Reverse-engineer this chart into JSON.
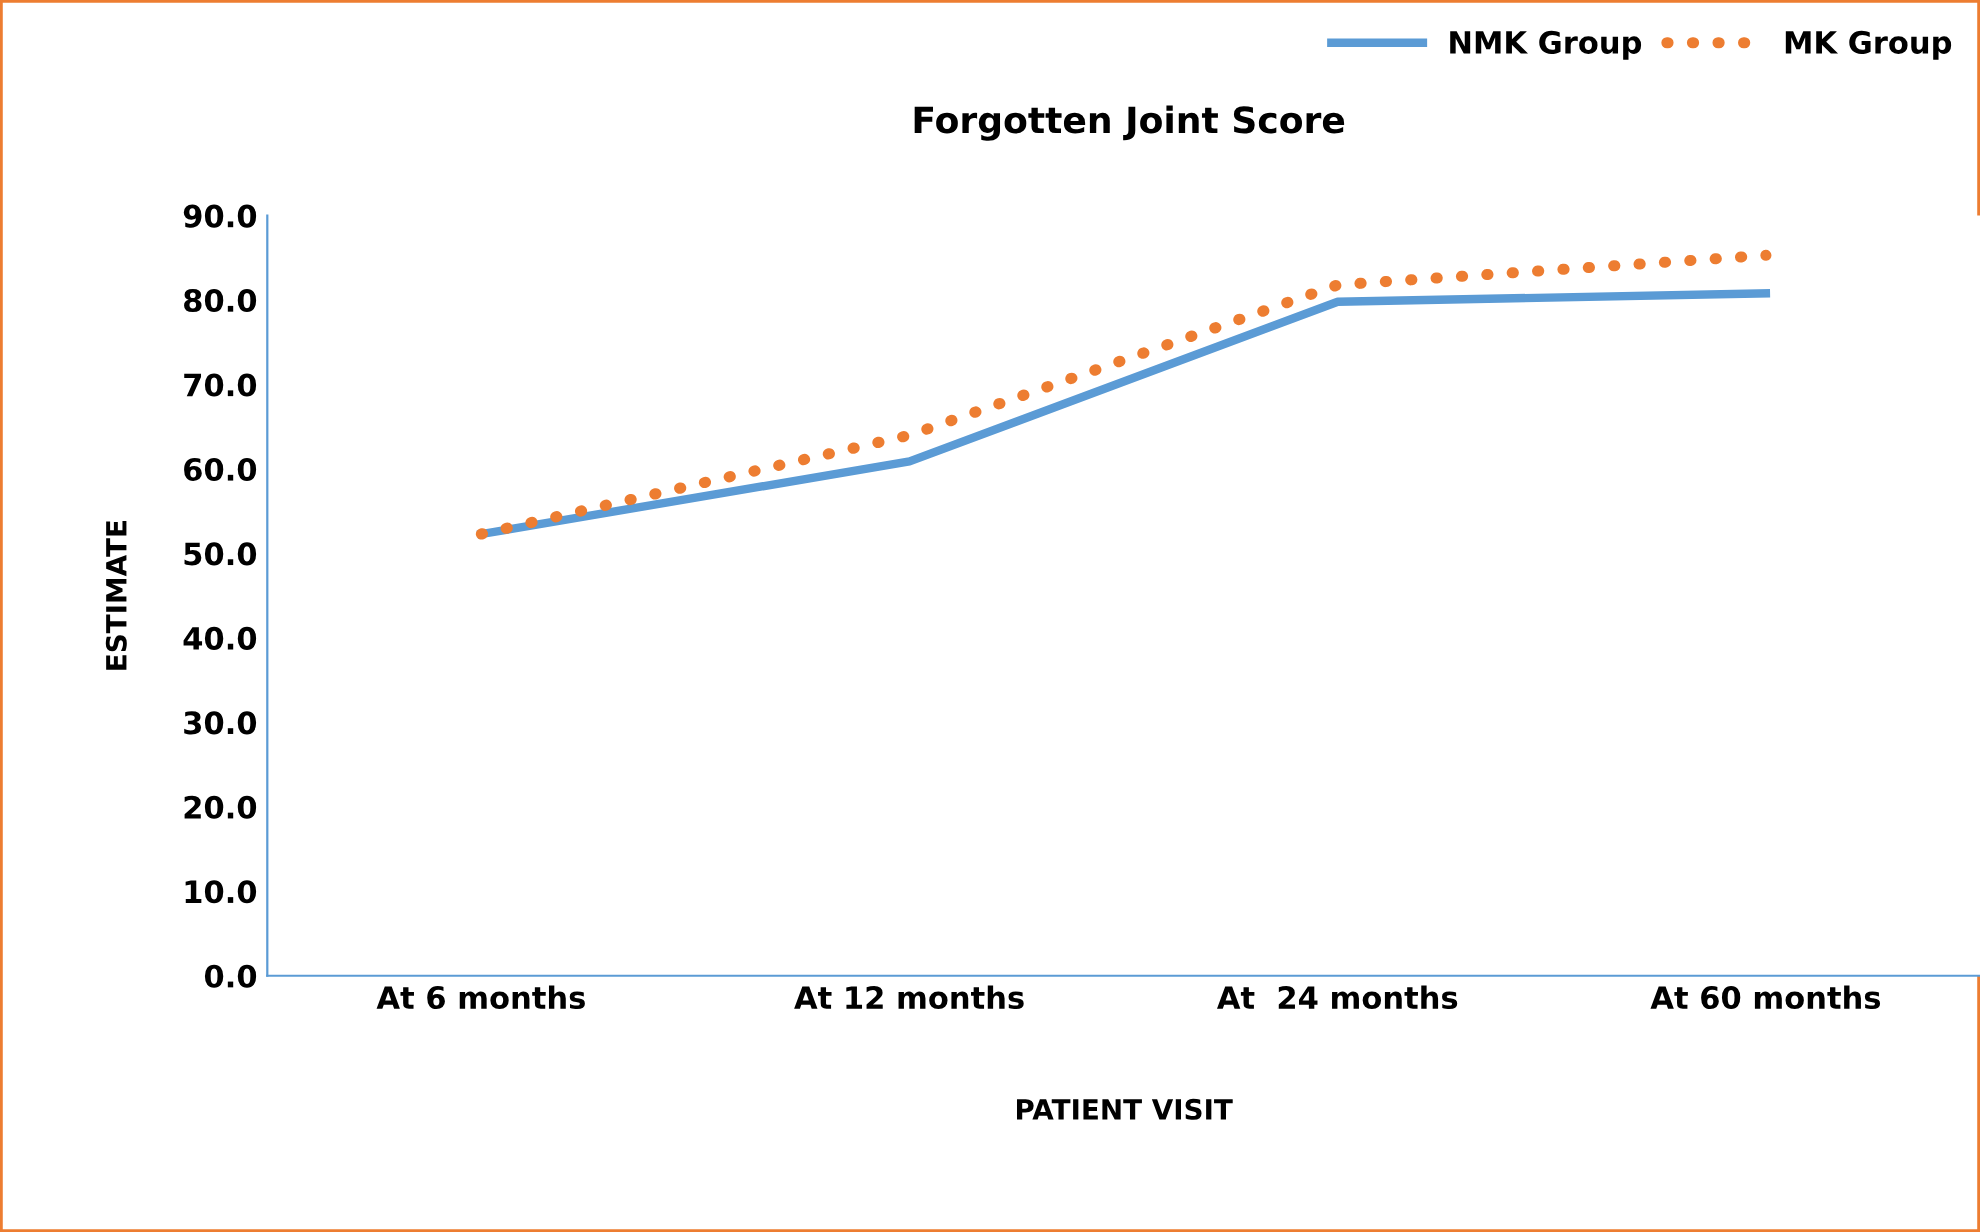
{
  "chart_data": {
    "type": "line",
    "title": "Forgotten Joint Score",
    "xlabel": "PATIENT VISIT",
    "ylabel": "ESTIMATE",
    "categories": [
      "At 6 months",
      "At 12 months",
      "At  24 months",
      "At 60 months"
    ],
    "series": [
      {
        "name": "NMK Group",
        "color": "#5b9bd5",
        "line_style": "solid",
        "values": [
          52.3,
          60.9,
          79.8,
          80.8
        ]
      },
      {
        "name": "MK Group",
        "color": "#ed7d31",
        "line_style": "dotted",
        "values": [
          52.3,
          64.0,
          81.8,
          85.3
        ]
      }
    ],
    "ylim": [
      0,
      90
    ],
    "yticks": [
      {
        "value": 0,
        "label": "0.0"
      },
      {
        "value": 10,
        "label": "10.0"
      },
      {
        "value": 20,
        "label": "20.0"
      },
      {
        "value": 30,
        "label": "30.0"
      },
      {
        "value": 40,
        "label": "40.0"
      },
      {
        "value": 50,
        "label": "50.0"
      },
      {
        "value": 60,
        "label": "60.0"
      },
      {
        "value": 70,
        "label": "70.0"
      },
      {
        "value": 80,
        "label": "80.0"
      },
      {
        "value": 90,
        "label": "90.0"
      }
    ],
    "grid": false,
    "legend": "top right",
    "marker": "none"
  }
}
